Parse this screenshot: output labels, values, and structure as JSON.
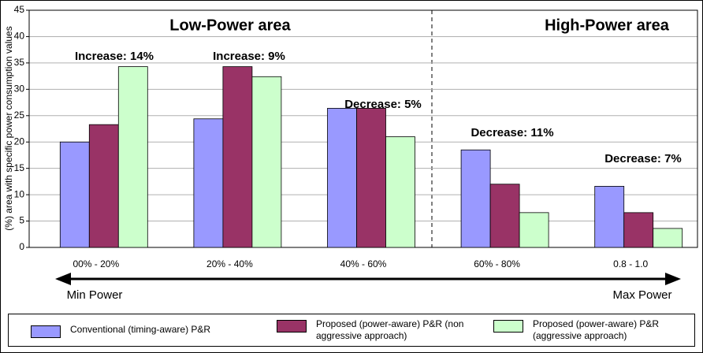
{
  "chart_data": {
    "type": "bar",
    "y_label": "(%) area with specific power consumption values",
    "categories": [
      "00% - 20%",
      "20% - 40%",
      "40% - 60%",
      "60% - 80%",
      "0.8 - 1.0"
    ],
    "series": [
      {
        "name": "Conventional (timing-aware) P&R",
        "color": "#9999ff",
        "values": [
          20,
          24.4,
          26.4,
          18.5,
          11.6
        ]
      },
      {
        "name": "Proposed (power-aware) P&R (non aggressive approach)",
        "color": "#993366",
        "values": [
          23.3,
          34.3,
          26.4,
          12,
          6.6
        ]
      },
      {
        "name": "Proposed (power-aware) P&R (aggressive approach)",
        "color": "#ccffcc",
        "values": [
          34.3,
          32.4,
          21,
          6.6,
          3.6
        ]
      }
    ],
    "ylim": [
      0,
      45
    ],
    "yticks": [
      0,
      5,
      10,
      15,
      20,
      25,
      30,
      35,
      40,
      45
    ],
    "grid": true,
    "annotations": [
      "Low-Power area",
      "High-Power area",
      "Increase: 14%",
      "Increase: 9%",
      "Decrease: 5%",
      "Decrease: 11%",
      "Decrease: 7%"
    ],
    "arrow_left_label": "Min Power",
    "arrow_right_label": "Max Power"
  }
}
